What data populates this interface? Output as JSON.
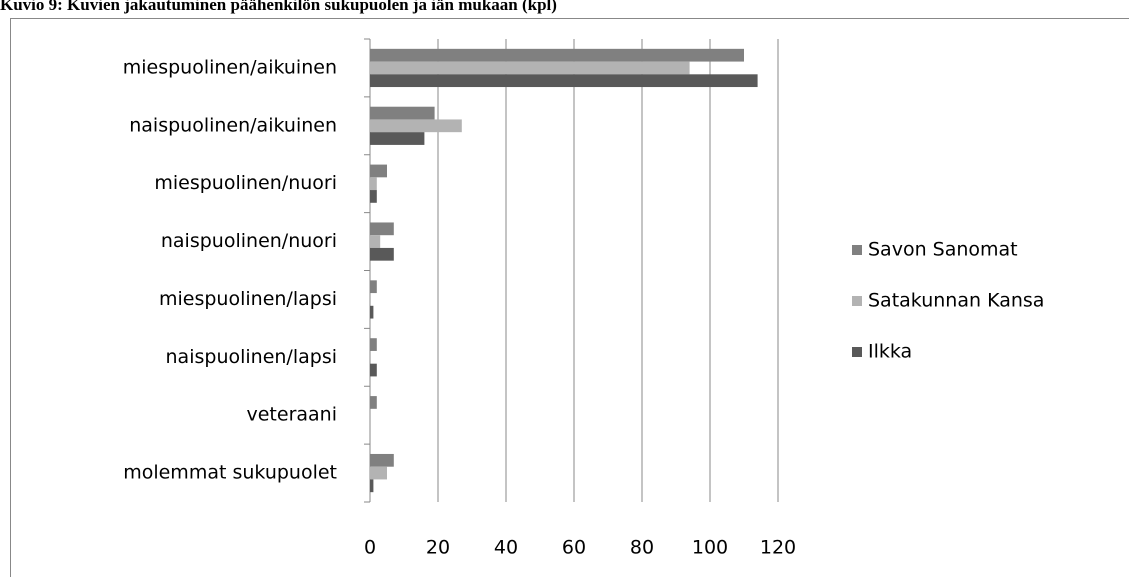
{
  "chart_data": {
    "type": "barh",
    "title": "Kuvio 9: Kuvien jakautuminen päähenkilön sukupuolen ja iän mukaan (kpl)",
    "categories": [
      "miespuolinen/aikuinen",
      "naispuolinen/aikuinen",
      "miespuolinen/nuori",
      "naispuolinen/nuori",
      "miespuolinen/lapsi",
      "naispuolinen/lapsi",
      "veteraani",
      "molemmat sukupuolet"
    ],
    "series": [
      {
        "name": "Savon Sanomat",
        "color": "#808080",
        "values": [
          110,
          19,
          5,
          7,
          2,
          2,
          2,
          7
        ]
      },
      {
        "name": "Satakunnan Kansa",
        "color": "#b3b3b3",
        "values": [
          94,
          27,
          2,
          3,
          0,
          0,
          0,
          5
        ]
      },
      {
        "name": "Ilkka",
        "color": "#595959",
        "values": [
          114,
          16,
          2,
          7,
          1,
          2,
          0,
          1
        ]
      }
    ],
    "xlim": [
      0,
      120
    ],
    "xticks": [
      0,
      20,
      40,
      60,
      80,
      100,
      120
    ],
    "grid": true,
    "legend": "right"
  }
}
